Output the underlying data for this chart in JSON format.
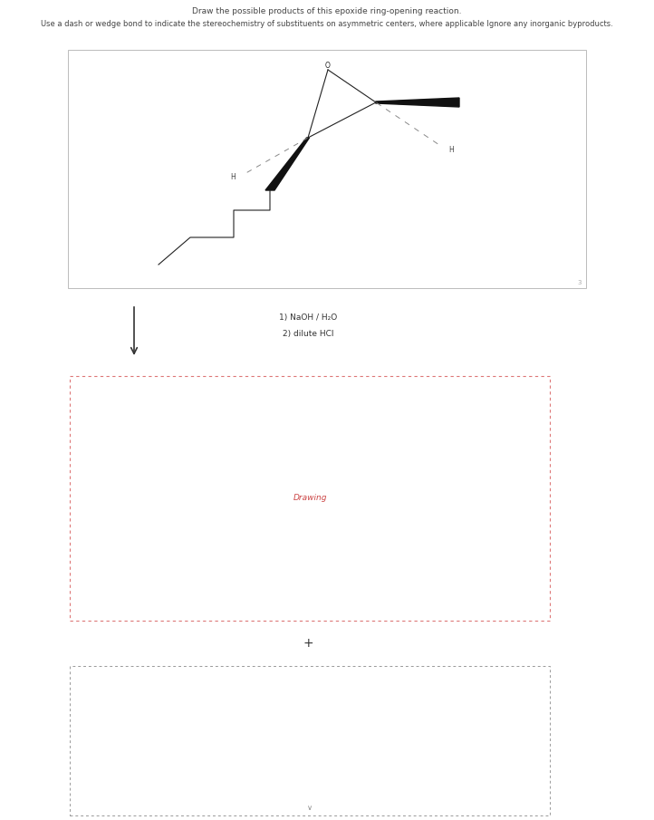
{
  "title1": "Draw the possible products of this epoxide ring-opening reaction.",
  "title2": "Use a dash or wedge bond to indicate the stereochemistry of substituents on asymmetric centers, where applicable Ignore any inorganic byproducts.",
  "reaction_label1": "1) NaOH / H₂O",
  "reaction_label2": "2) dilute HCl",
  "drawing_label": "Drawing",
  "bg_color": "#ffffff"
}
